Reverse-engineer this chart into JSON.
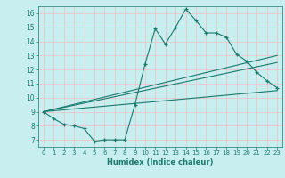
{
  "xlabel": "Humidex (Indice chaleur)",
  "xlim": [
    -0.5,
    23.5
  ],
  "ylim": [
    6.5,
    16.5
  ],
  "yticks": [
    7,
    8,
    9,
    10,
    11,
    12,
    13,
    14,
    15,
    16
  ],
  "xticks": [
    0,
    1,
    2,
    3,
    4,
    5,
    6,
    7,
    8,
    9,
    10,
    11,
    12,
    13,
    14,
    15,
    16,
    17,
    18,
    19,
    20,
    21,
    22,
    23
  ],
  "background_color": "#c8eef0",
  "grid_color": "#e8c8c8",
  "line_color": "#1a7a6e",
  "line1_x": [
    0,
    1,
    2,
    3,
    4,
    5,
    6,
    7,
    8,
    9,
    10,
    11,
    12,
    13,
    14,
    15,
    16,
    17,
    18,
    19,
    20,
    21,
    22,
    23
  ],
  "line1_y": [
    9.0,
    8.5,
    8.1,
    8.0,
    7.8,
    6.9,
    7.0,
    7.0,
    7.0,
    9.5,
    12.4,
    14.9,
    13.8,
    15.0,
    16.3,
    15.5,
    14.6,
    14.6,
    14.3,
    13.1,
    12.6,
    11.8,
    11.2,
    10.7
  ],
  "line2_x": [
    0,
    23
  ],
  "line2_y": [
    9.0,
    10.5
  ],
  "line3_x": [
    0,
    23
  ],
  "line3_y": [
    9.0,
    12.5
  ],
  "line4_x": [
    0,
    23
  ],
  "line4_y": [
    9.0,
    13.0
  ]
}
